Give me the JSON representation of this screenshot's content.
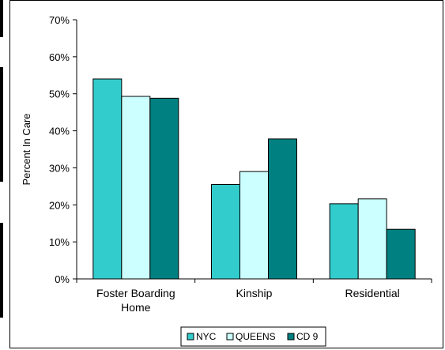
{
  "chart_data": {
    "type": "bar",
    "title": "",
    "xlabel": "",
    "ylabel": "Percent In Care",
    "categories": [
      [
        "Foster Boarding",
        "Home"
      ],
      [
        "Kinship"
      ],
      [
        "Residential"
      ]
    ],
    "series": [
      {
        "name": "NYC",
        "values": [
          54,
          25.5,
          20.3
        ],
        "color": "#33CCCC"
      },
      {
        "name": "QUEENS",
        "values": [
          49.3,
          29,
          21.6
        ],
        "color": "#CCFFFF"
      },
      {
        "name": "CD 9",
        "values": [
          48.8,
          37.8,
          13.4
        ],
        "color": "#008080"
      }
    ],
    "ylim": [
      0,
      70
    ],
    "yticks": [
      0,
      10,
      20,
      30,
      40,
      50,
      60,
      70
    ],
    "ytick_labels": [
      "0%",
      "10%",
      "20%",
      "30%",
      "40%",
      "50%",
      "60%",
      "70%"
    ],
    "grid": false,
    "legend_position": "bottom"
  }
}
